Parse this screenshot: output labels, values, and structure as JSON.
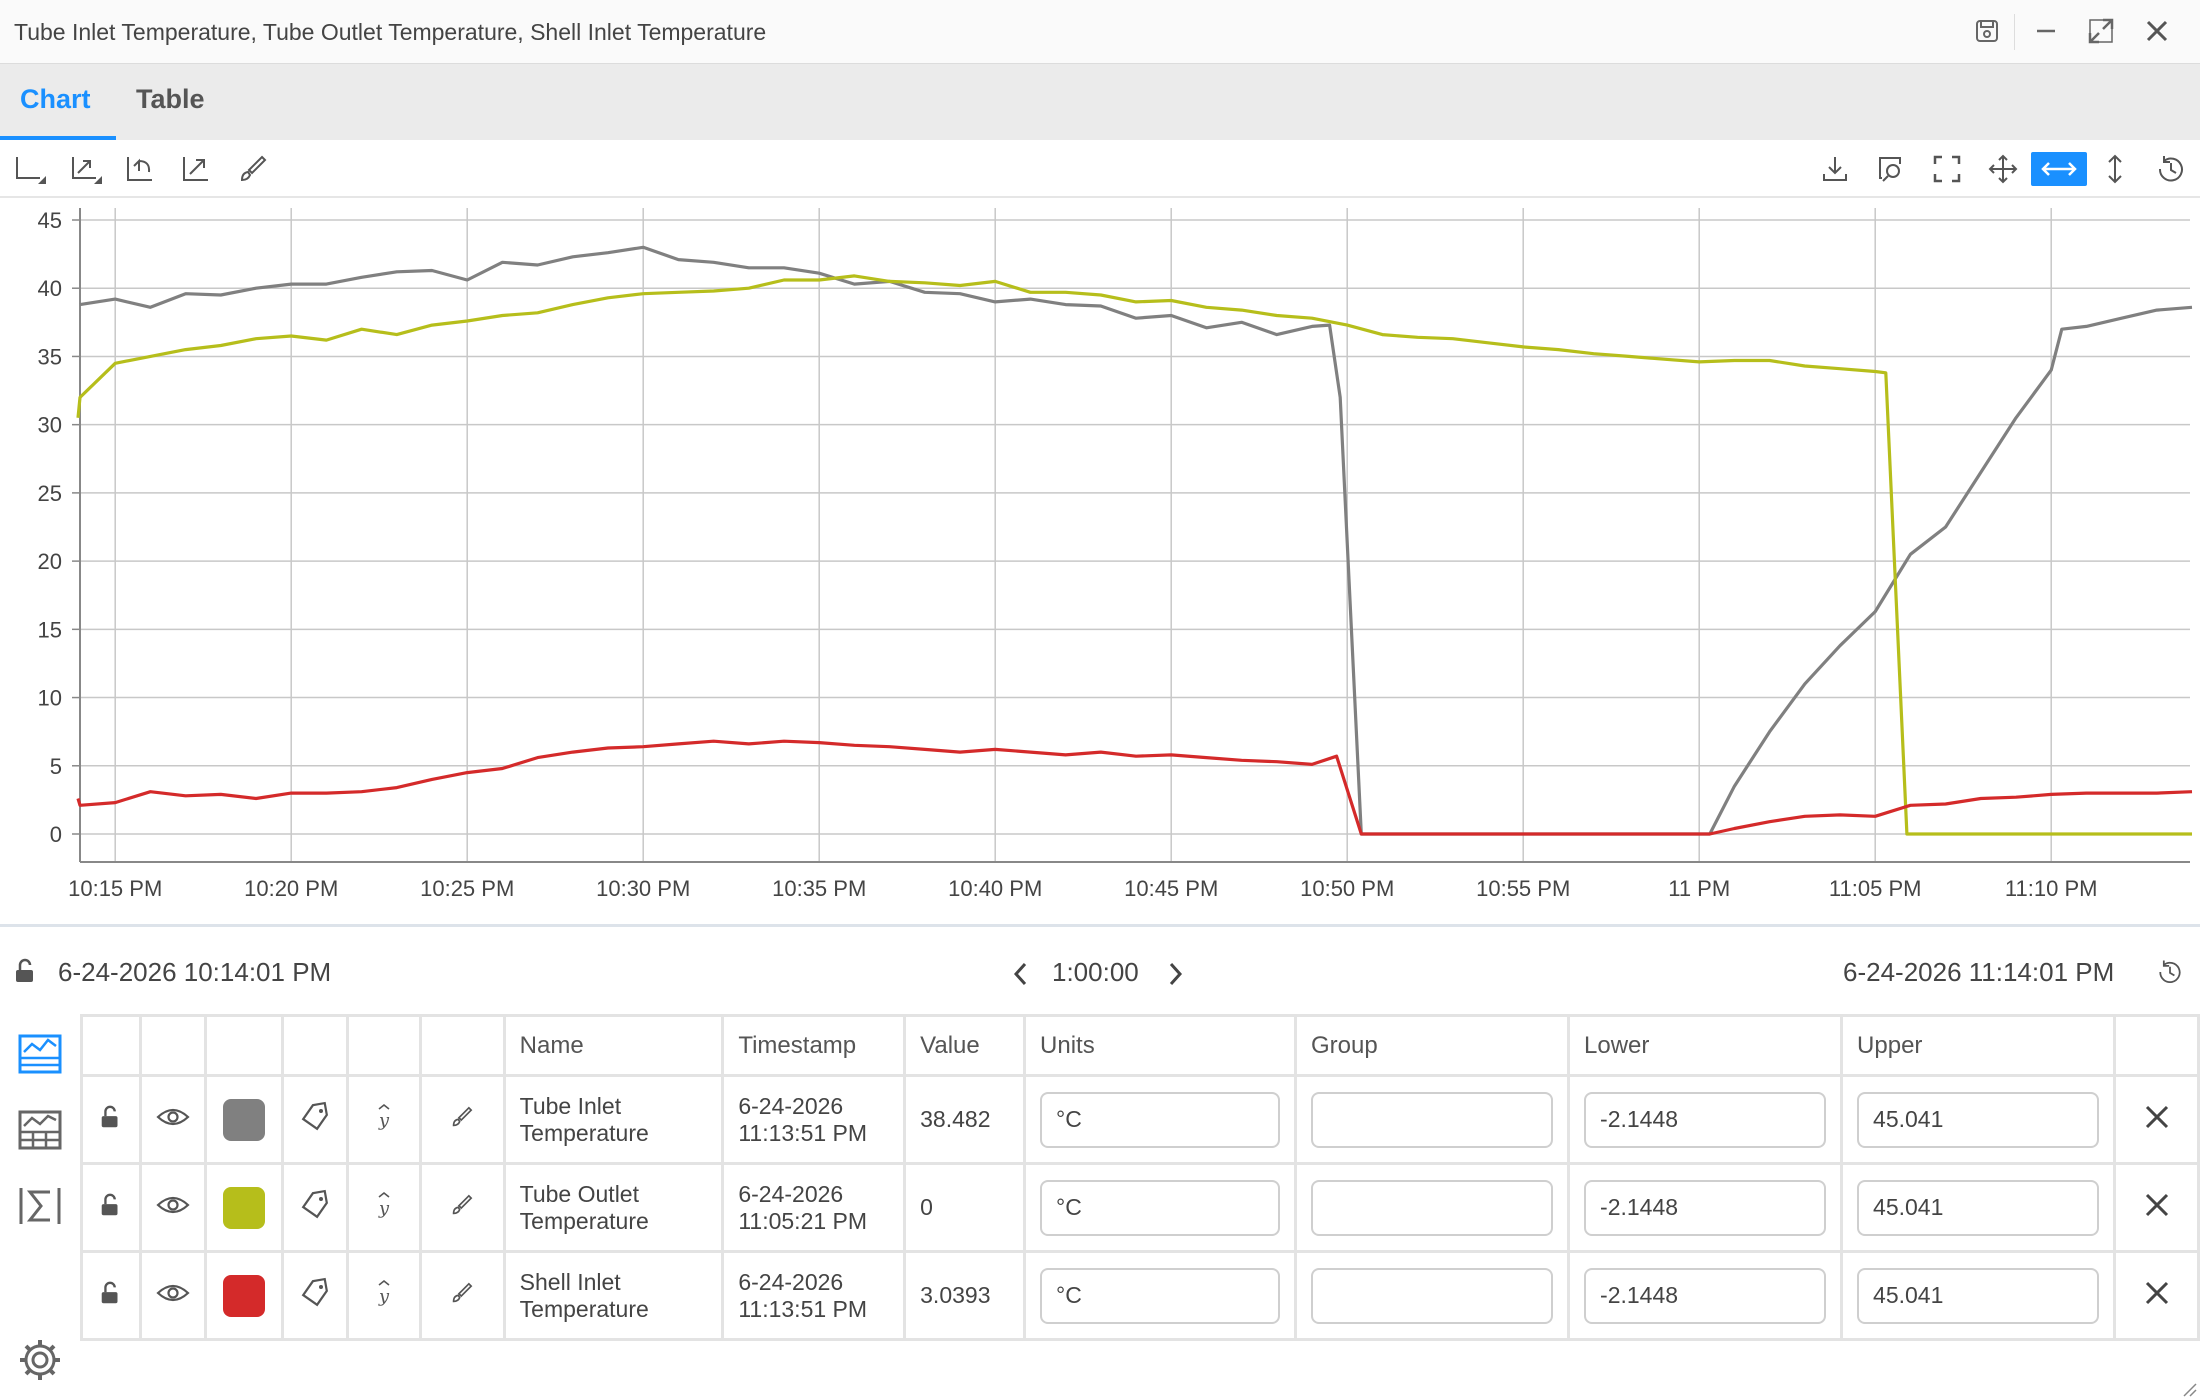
{
  "window": {
    "title": "Tube Inlet Temperature, Tube Outlet Temperature, Shell Inlet Temperature",
    "icons": [
      "save-icon",
      "minimize-icon",
      "maximize-icon",
      "close-icon"
    ]
  },
  "tabs": [
    {
      "label": "Chart",
      "active": true
    },
    {
      "label": "Table",
      "active": false
    }
  ],
  "toolbar": {
    "left_icons": [
      "axis-options-icon",
      "axis-scale-icon",
      "reset-zoom-icon",
      "autoscale-icon",
      "brush-icon"
    ],
    "right_icons": [
      "download-icon",
      "lookup-icon",
      "fullscreen-icon",
      "pan-icon",
      "zoom-horizontal-icon",
      "zoom-vertical-icon",
      "history-icon"
    ],
    "active_icon": "zoom-horizontal-icon",
    "accent_color": "#1a90ff"
  },
  "range": {
    "start": "6-24-2026 10:14:01 PM",
    "duration": "1:00:00",
    "end": "6-24-2026 11:14:01 PM"
  },
  "chart_data": {
    "type": "line",
    "grid": true,
    "ylim": [
      0,
      45
    ],
    "yticks": [
      "0",
      "5",
      "10",
      "15",
      "20",
      "25",
      "30",
      "35",
      "40",
      "45"
    ],
    "xlim_minutes": [
      0,
      60
    ],
    "xticks": [
      {
        "label": "10:15 PM",
        "min": 1
      },
      {
        "label": "10:20 PM",
        "min": 6
      },
      {
        "label": "10:25 PM",
        "min": 11
      },
      {
        "label": "10:30 PM",
        "min": 16
      },
      {
        "label": "10:35 PM",
        "min": 21
      },
      {
        "label": "10:40 PM",
        "min": 26
      },
      {
        "label": "10:45 PM",
        "min": 31
      },
      {
        "label": "10:50 PM",
        "min": 36
      },
      {
        "label": "10:55 PM",
        "min": 41
      },
      {
        "label": "11 PM",
        "min": 46
      },
      {
        "label": "11:05 PM",
        "min": 51
      },
      {
        "label": "11:10 PM",
        "min": 56
      }
    ],
    "series": [
      {
        "name": "Tube Inlet Temperature",
        "color": "#808080",
        "points": [
          [
            0,
            38.8
          ],
          [
            1,
            39.2
          ],
          [
            2,
            38.6
          ],
          [
            3,
            39.6
          ],
          [
            4,
            39.5
          ],
          [
            5,
            40.0
          ],
          [
            6,
            40.3
          ],
          [
            7,
            40.3
          ],
          [
            8,
            40.8
          ],
          [
            9,
            41.2
          ],
          [
            10,
            41.3
          ],
          [
            11,
            40.6
          ],
          [
            12,
            41.9
          ],
          [
            13,
            41.7
          ],
          [
            14,
            42.3
          ],
          [
            15,
            42.6
          ],
          [
            16,
            43.0
          ],
          [
            17,
            42.1
          ],
          [
            18,
            41.9
          ],
          [
            19,
            41.5
          ],
          [
            20,
            41.5
          ],
          [
            21,
            41.1
          ],
          [
            22,
            40.3
          ],
          [
            23,
            40.5
          ],
          [
            24,
            39.7
          ],
          [
            25,
            39.6
          ],
          [
            26,
            39.0
          ],
          [
            27,
            39.2
          ],
          [
            28,
            38.8
          ],
          [
            29,
            38.7
          ],
          [
            30,
            37.8
          ],
          [
            31,
            38.0
          ],
          [
            32,
            37.1
          ],
          [
            33,
            37.5
          ],
          [
            34,
            36.6
          ],
          [
            35,
            37.2
          ],
          [
            35.5,
            37.3
          ],
          [
            35.8,
            32.0
          ],
          [
            36.4,
            0
          ],
          [
            46.3,
            0
          ],
          [
            47,
            3.5
          ],
          [
            48,
            7.5
          ],
          [
            49,
            11.0
          ],
          [
            50,
            13.8
          ],
          [
            51,
            16.3
          ],
          [
            52,
            20.5
          ],
          [
            53,
            22.5
          ],
          [
            54,
            26.5
          ],
          [
            55,
            30.5
          ],
          [
            56,
            34.0
          ],
          [
            56.3,
            37.0
          ],
          [
            57,
            37.2
          ],
          [
            58,
            37.8
          ],
          [
            59,
            38.4
          ],
          [
            60,
            38.6
          ]
        ]
      },
      {
        "name": "Tube Outlet Temperature",
        "color": "#b6be1b",
        "points": [
          [
            -1,
            30.5
          ],
          [
            0,
            32.0
          ],
          [
            1,
            34.5
          ],
          [
            2,
            35.0
          ],
          [
            3,
            35.5
          ],
          [
            4,
            35.8
          ],
          [
            5,
            36.3
          ],
          [
            6,
            36.5
          ],
          [
            7,
            36.2
          ],
          [
            8,
            37.0
          ],
          [
            9,
            36.6
          ],
          [
            10,
            37.3
          ],
          [
            11,
            37.6
          ],
          [
            12,
            38.0
          ],
          [
            13,
            38.2
          ],
          [
            14,
            38.8
          ],
          [
            15,
            39.3
          ],
          [
            16,
            39.6
          ],
          [
            17,
            39.7
          ],
          [
            18,
            39.8
          ],
          [
            19,
            40.0
          ],
          [
            20,
            40.6
          ],
          [
            21,
            40.6
          ],
          [
            22,
            40.9
          ],
          [
            23,
            40.5
          ],
          [
            24,
            40.4
          ],
          [
            25,
            40.2
          ],
          [
            26,
            40.5
          ],
          [
            27,
            39.7
          ],
          [
            28,
            39.7
          ],
          [
            29,
            39.5
          ],
          [
            30,
            39.0
          ],
          [
            31,
            39.1
          ],
          [
            32,
            38.6
          ],
          [
            33,
            38.4
          ],
          [
            34,
            38.0
          ],
          [
            35,
            37.8
          ],
          [
            36,
            37.3
          ],
          [
            37,
            36.6
          ],
          [
            38,
            36.4
          ],
          [
            39,
            36.3
          ],
          [
            40,
            36.0
          ],
          [
            41,
            35.7
          ],
          [
            42,
            35.5
          ],
          [
            43,
            35.2
          ],
          [
            44,
            35.0
          ],
          [
            45,
            34.8
          ],
          [
            46,
            34.6
          ],
          [
            47,
            34.7
          ],
          [
            48,
            34.7
          ],
          [
            49,
            34.3
          ],
          [
            50,
            34.1
          ],
          [
            51,
            33.9
          ],
          [
            51.3,
            33.8
          ],
          [
            51.9,
            0
          ],
          [
            60,
            0
          ]
        ]
      },
      {
        "name": "Shell Inlet Temperature",
        "color": "#d42a2a",
        "points": [
          [
            -1,
            2.6
          ],
          [
            0,
            2.1
          ],
          [
            1,
            2.3
          ],
          [
            2,
            3.1
          ],
          [
            3,
            2.8
          ],
          [
            4,
            2.9
          ],
          [
            5,
            2.6
          ],
          [
            6,
            3.0
          ],
          [
            7,
            3.0
          ],
          [
            8,
            3.1
          ],
          [
            9,
            3.4
          ],
          [
            10,
            4.0
          ],
          [
            11,
            4.5
          ],
          [
            12,
            4.8
          ],
          [
            13,
            5.6
          ],
          [
            14,
            6.0
          ],
          [
            15,
            6.3
          ],
          [
            16,
            6.4
          ],
          [
            17,
            6.6
          ],
          [
            18,
            6.8
          ],
          [
            19,
            6.6
          ],
          [
            20,
            6.8
          ],
          [
            21,
            6.7
          ],
          [
            22,
            6.5
          ],
          [
            23,
            6.4
          ],
          [
            24,
            6.2
          ],
          [
            25,
            6.0
          ],
          [
            26,
            6.2
          ],
          [
            27,
            6.0
          ],
          [
            28,
            5.8
          ],
          [
            29,
            6.0
          ],
          [
            30,
            5.7
          ],
          [
            31,
            5.8
          ],
          [
            32,
            5.6
          ],
          [
            33,
            5.4
          ],
          [
            34,
            5.3
          ],
          [
            35,
            5.1
          ],
          [
            35.7,
            5.7
          ],
          [
            36.4,
            0
          ],
          [
            46.3,
            0
          ],
          [
            47,
            0.4
          ],
          [
            48,
            0.9
          ],
          [
            49,
            1.3
          ],
          [
            50,
            1.4
          ],
          [
            51,
            1.3
          ],
          [
            52,
            2.1
          ],
          [
            53,
            2.2
          ],
          [
            54,
            2.6
          ],
          [
            55,
            2.7
          ],
          [
            56,
            2.9
          ],
          [
            57,
            3.0
          ],
          [
            58,
            3.0
          ],
          [
            59,
            3.0
          ],
          [
            60,
            3.1
          ]
        ]
      }
    ]
  },
  "table": {
    "headers": {
      "name": "Name",
      "timestamp": "Timestamp",
      "value": "Value",
      "units": "Units",
      "group": "Group",
      "lower": "Lower",
      "upper": "Upper"
    },
    "rows": [
      {
        "name": "Tube Inlet Temperature",
        "ts_date": "6-24-2026",
        "ts_time": "11:13:51 PM",
        "value": "38.482",
        "units": "°C",
        "group": "",
        "lower": "-2.1448",
        "upper": "45.041",
        "color": "#808080"
      },
      {
        "name": "Tube Outlet Temperature",
        "ts_date": "6-24-2026",
        "ts_time": "11:05:21 PM",
        "value": "0",
        "units": "°C",
        "group": "",
        "lower": "-2.1448",
        "upper": "45.041",
        "color": "#b6be1b"
      },
      {
        "name": "Shell Inlet Temperature",
        "ts_date": "6-24-2026",
        "ts_time": "11:13:51 PM",
        "value": "3.0393",
        "units": "°C",
        "group": "",
        "lower": "-2.1448",
        "upper": "45.041",
        "color": "#d42a2a"
      }
    ]
  },
  "sidebar": {
    "icons": [
      "trend-list-icon",
      "table-grid-icon",
      "formula-sigma-icon",
      "settings-gear-icon"
    ]
  }
}
